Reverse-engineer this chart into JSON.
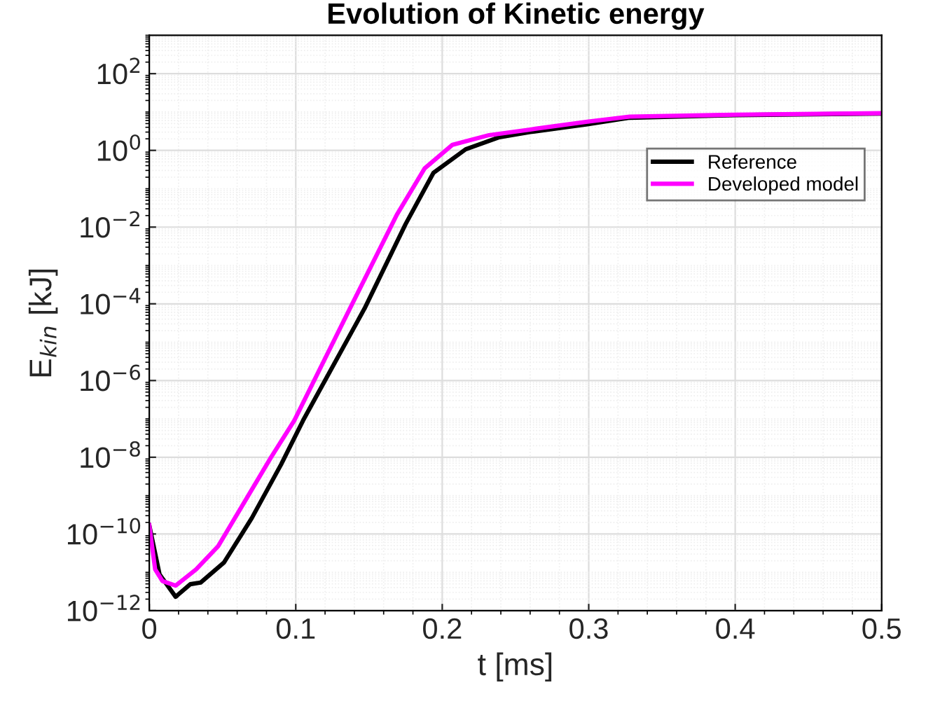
{
  "chart_data": {
    "type": "line",
    "title": "Evolution of Kinetic energy",
    "xlabel": "t [ms]",
    "ylabel": "E$_{kin}$ [kJ]",
    "log": "y",
    "grid": true,
    "legend": "top right",
    "line_style": "solid",
    "marker": "none",
    "xlim": [
      0,
      0.5
    ],
    "xticks": [
      0,
      0.1,
      0.2,
      0.3,
      0.4,
      0.5
    ],
    "ylim": [
      1e-12,
      1000
    ],
    "yticks": [
      {
        "value": 1e-12,
        "label": "10$^{−12}$"
      },
      {
        "value": 1e-10,
        "label": "10$^{−10}$"
      },
      {
        "value": 1e-08,
        "label": "10$^{−8}$"
      },
      {
        "value": 1e-06,
        "label": "10$^{−6}$"
      },
      {
        "value": 0.0001,
        "label": "10$^{−4}$"
      },
      {
        "value": 0.01,
        "label": "10$^{−2}$"
      },
      {
        "value": 1,
        "label": "10$^{0}$"
      },
      {
        "value": 100,
        "label": "10$^{2}$"
      }
    ],
    "series": [
      {
        "name": "Reference",
        "color": "#000000",
        "x": [
          0,
          0.007,
          0.018,
          0.028,
          0.035,
          0.051,
          0.07,
          0.09,
          0.105,
          0.147,
          0.175,
          0.194,
          0.216,
          0.239,
          0.26,
          0.299,
          0.328,
          0.4,
          0.5
        ],
        "values": [
          1.7e-10,
          8.9e-12,
          2.3e-12,
          4.9e-12,
          5.4e-12,
          1.8e-11,
          2.6e-10,
          6.5e-09,
          9.1e-08,
          7.6e-05,
          0.012,
          0.26,
          1.07,
          2.2,
          3.0,
          4.8,
          7.1,
          8.3,
          9.1
        ]
      },
      {
        "name": "Developed model",
        "color": "#ff00ff",
        "x": [
          0,
          0.004,
          0.009,
          0.018,
          0.032,
          0.047,
          0.064,
          0.083,
          0.099,
          0.137,
          0.169,
          0.188,
          0.207,
          0.232,
          0.26,
          0.299,
          0.328,
          0.4,
          0.5
        ],
        "values": [
          1.7e-10,
          1.2e-11,
          5.9e-12,
          4.5e-12,
          1.2e-11,
          4.8e-11,
          5.9e-10,
          9.8e-09,
          9.1e-08,
          7.6e-05,
          0.021,
          0.34,
          1.4,
          2.5,
          3.5,
          5.6,
          7.6,
          8.5,
          9.3
        ]
      }
    ]
  }
}
